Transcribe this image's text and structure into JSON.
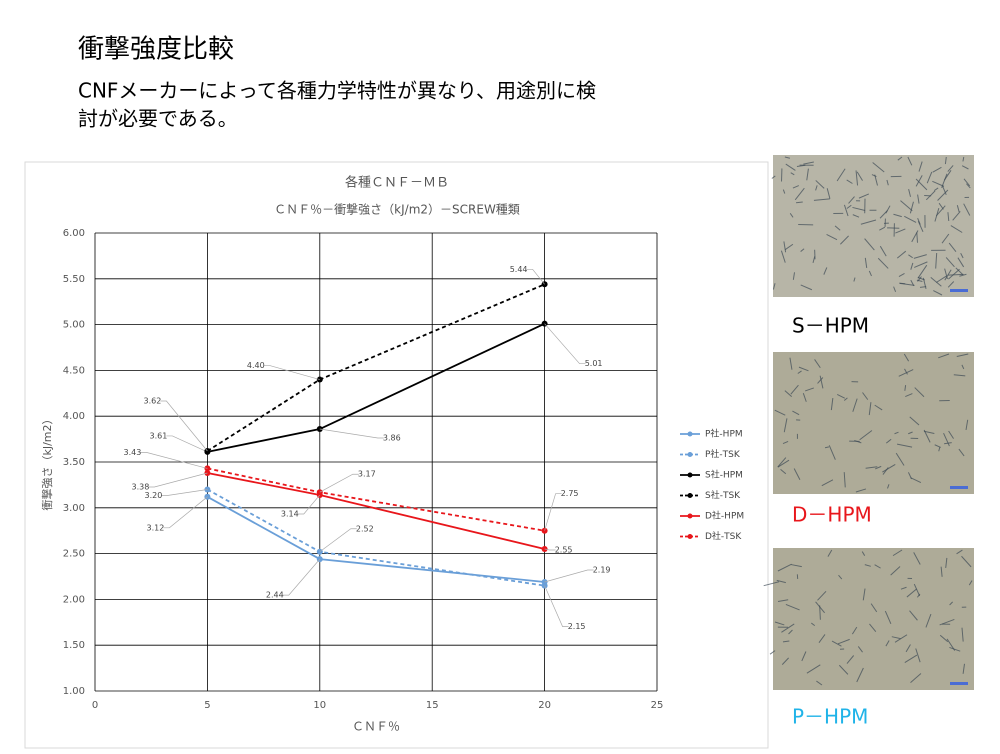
{
  "header": {
    "title": "衝撃強度比較",
    "subtitle_lines": [
      "CNFメーカーによって各種力学特性が異なり、用途別に検",
      "討が必要である。"
    ]
  },
  "chart_data": {
    "type": "line",
    "title": "各種ＣＮＦ－ＭＢ",
    "subtitle": "ＣＮＦ％－衝撃強さ（kJ/m2）－SCREW種類",
    "x_label": "ＣＮＦ％",
    "y_label": "衝撃強さ（kJ/m2）",
    "x": [
      5,
      10,
      20
    ],
    "xlim": [
      0,
      25
    ],
    "xticks": [
      0,
      5,
      10,
      15,
      20,
      25
    ],
    "ylim": [
      1,
      6
    ],
    "yticks": [
      {
        "value": 1,
        "label": "1.00"
      },
      {
        "value": 1.5,
        "label": "1.50"
      },
      {
        "value": 2,
        "label": "2.00"
      },
      {
        "value": 2.5,
        "label": "2.50"
      },
      {
        "value": 3,
        "label": "3.00"
      },
      {
        "value": 3.5,
        "label": "3.50"
      },
      {
        "value": 4,
        "label": "4.00"
      },
      {
        "value": 4.5,
        "label": "4.50"
      },
      {
        "value": 5,
        "label": "5.00"
      },
      {
        "value": 5.5,
        "label": "5.50"
      },
      {
        "value": 6,
        "label": "6.00"
      }
    ],
    "grid": true,
    "series": [
      {
        "name": "P社-HPM",
        "color": "#6a9fd8",
        "dashed": false,
        "values": [
          3.12,
          2.44,
          2.19
        ],
        "value_labels": [
          "3.12",
          "2.44",
          "2.19"
        ]
      },
      {
        "name": "P社-TSK",
        "color": "#6a9fd8",
        "dashed": true,
        "values": [
          3.2,
          2.52,
          2.15
        ],
        "value_labels": [
          "3.20",
          "2.52",
          "2.15"
        ]
      },
      {
        "name": "S社-HPM",
        "color": "#000000",
        "dashed": false,
        "values": [
          3.61,
          3.86,
          5.01
        ],
        "value_labels": [
          "3.61",
          "3.86",
          "5.01"
        ]
      },
      {
        "name": "S社-TSK",
        "color": "#000000",
        "dashed": true,
        "values": [
          3.62,
          4.4,
          5.44
        ],
        "value_labels": [
          "3.62",
          "4.40",
          "5.44"
        ]
      },
      {
        "name": "D社-HPM",
        "color": "#e8161b",
        "dashed": false,
        "values": [
          3.38,
          3.14,
          2.55
        ],
        "value_labels": [
          "3.38",
          "3.14",
          "2.55"
        ]
      },
      {
        "name": "D社-TSK",
        "color": "#e8161b",
        "dashed": true,
        "values": [
          3.43,
          3.17,
          2.75
        ],
        "value_labels": [
          "3.43",
          "3.17",
          "2.75"
        ]
      }
    ]
  },
  "images": [
    {
      "label": "S－HPM",
      "color": "#000000"
    },
    {
      "label": "D－HPM",
      "color": "#e8161b"
    },
    {
      "label": "P－HPM",
      "color": "#1fb3e8"
    }
  ]
}
